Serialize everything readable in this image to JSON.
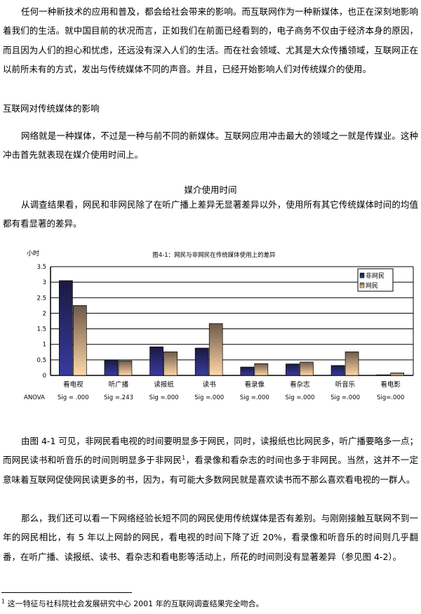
{
  "paragraphs": {
    "intro": "任何一种新技术的应用和普及，都会给社会带来的影响。而互联网作为一种新媒体，也正在深刻地影响着我们的生活。就中国目前的状况而言，正如我们在前面已经看到的，电子商务不仅由于经济本身的原因，而且因为人们的担心和忧虑，还远没有深入人们的生活。而在社会领域、尤其是大众传播领域，互联网正在以前所未有的方式，发出与传统媒体不同的声音。并且，已经开始影响人们对传统媒介的使用。",
    "section_heading": "互联网对传统媒体的影响",
    "p2": "网络就是一种媒体，不过是一种与前不同的新媒体。互联网应用冲击最大的领域之一就是传媒业。这种冲击首先就表现在媒介使用时间上。",
    "subheading": "媒介使用时间",
    "p3": "从调查结果看，网民和非网民除了在听广播上差异无显著差异以外，使用所有其它传统媒体时间的均值都有看显著的差异。",
    "p4_a": "由图 4-1 可见，非网民看电视的时间要明显多于网民，同时，读报纸也比网民多，听广播要略多一点；而网民读书和听音乐的时间则明显多于非网民",
    "p4_sup": "1",
    "p4_b": "，看录像和看杂志的时间也多于非网民。当然，这并不一定意味着互联网促使网民读更多的书，因为，有可能大多数网民就是喜欢读书而不那么喜欢看电视的一群人。",
    "p5": "那么，我们还可以看一下网络经验长短不同的网民使用传统媒体是否有差别。与刚刚接触互联网不到一年的网民相比，有 5 年以上网龄的网民，看电视的时间下降了近 20%，看录像和听音乐的时间则几乎翻番，在听广播、读报纸、读书、看杂志和看电影等活动上，所花的时间则没有显著差异（参见图 4-2）。"
  },
  "footnote": {
    "mark": "1",
    "text": "这一特征与社科院社会发展研究中心 2001 年的互联网调查结果完全吻合。"
  },
  "chart_data": {
    "type": "bar",
    "title": "图4-1：网民与非网民在传统媒体使用上的差异",
    "ylabel": "小时",
    "ylim": [
      0,
      3.5
    ],
    "yticks": [
      "0",
      "0.5",
      "1",
      "1.5",
      "2",
      "2.5",
      "3",
      "3.5"
    ],
    "grid": true,
    "legend_position": "top-right",
    "categories": [
      "看电视",
      "听广播",
      "读报纸",
      "读书",
      "看录像",
      "看杂志",
      "听音乐",
      "看电影"
    ],
    "row_label": "ANOVA",
    "sig": [
      "Sig = .000",
      "Sig =.243",
      "Sig =.000",
      "Sig =.000",
      "Sig =.000",
      "Sig =.000",
      "Sig =.000",
      "Sig=.000"
    ],
    "series": [
      {
        "name": "非网民",
        "color": "#2b2f7a",
        "values": [
          3.05,
          0.5,
          0.92,
          0.88,
          0.27,
          0.37,
          0.32,
          0.02
        ]
      },
      {
        "name": "网民",
        "color": "#c89b6e",
        "values": [
          2.25,
          0.47,
          0.76,
          1.67,
          0.38,
          0.43,
          0.76,
          0.08
        ]
      }
    ]
  }
}
